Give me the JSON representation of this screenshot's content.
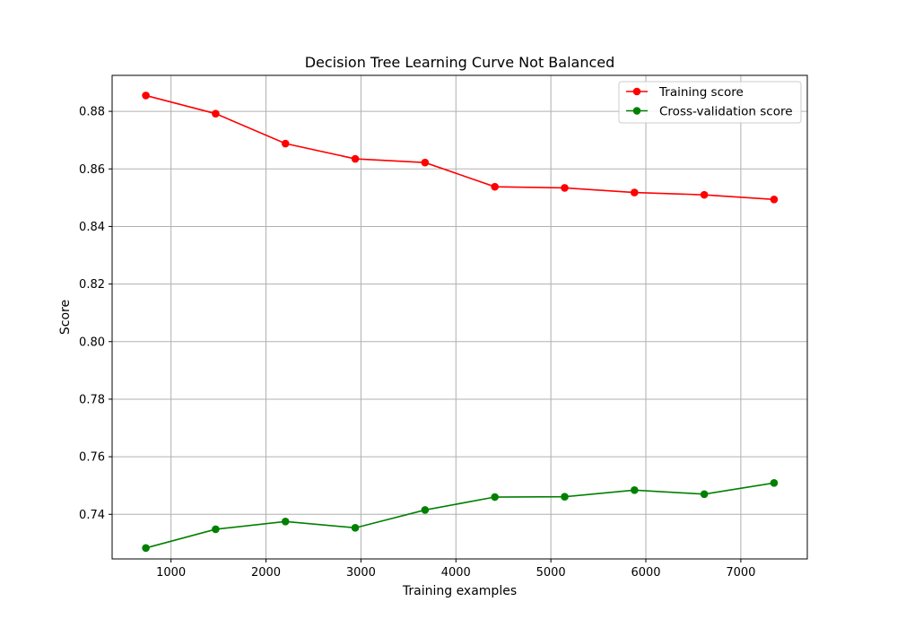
{
  "chart_data": {
    "type": "line",
    "title": "Decision Tree Learning Curve Not Balanced",
    "xlabel": "Training examples",
    "ylabel": "Score",
    "xlim": [
      380,
      7700
    ],
    "ylim": [
      0.7245,
      0.8925
    ],
    "xticks": [
      1000,
      2000,
      3000,
      4000,
      5000,
      6000,
      7000
    ],
    "yticks": [
      0.74,
      0.76,
      0.78,
      0.8,
      0.82,
      0.84,
      0.86,
      0.88
    ],
    "xtick_labels": [
      "1000",
      "2000",
      "3000",
      "4000",
      "5000",
      "6000",
      "7000"
    ],
    "ytick_labels": [
      "0.74",
      "0.76",
      "0.78",
      "0.80",
      "0.82",
      "0.84",
      "0.86",
      "0.88"
    ],
    "grid": true,
    "legend_position": "top-right",
    "x": [
      735,
      1470,
      2205,
      2940,
      3675,
      4410,
      5145,
      5880,
      6615,
      7350
    ],
    "series": [
      {
        "name": "Training score",
        "color": "#ff0000",
        "values": [
          0.8855,
          0.8792,
          0.8688,
          0.8635,
          0.8622,
          0.8538,
          0.8534,
          0.8518,
          0.851,
          0.8494
        ]
      },
      {
        "name": "Cross-validation score",
        "color": "#008000",
        "values": [
          0.7283,
          0.7348,
          0.7375,
          0.7353,
          0.7415,
          0.746,
          0.7461,
          0.7484,
          0.747,
          0.7509
        ]
      }
    ]
  }
}
